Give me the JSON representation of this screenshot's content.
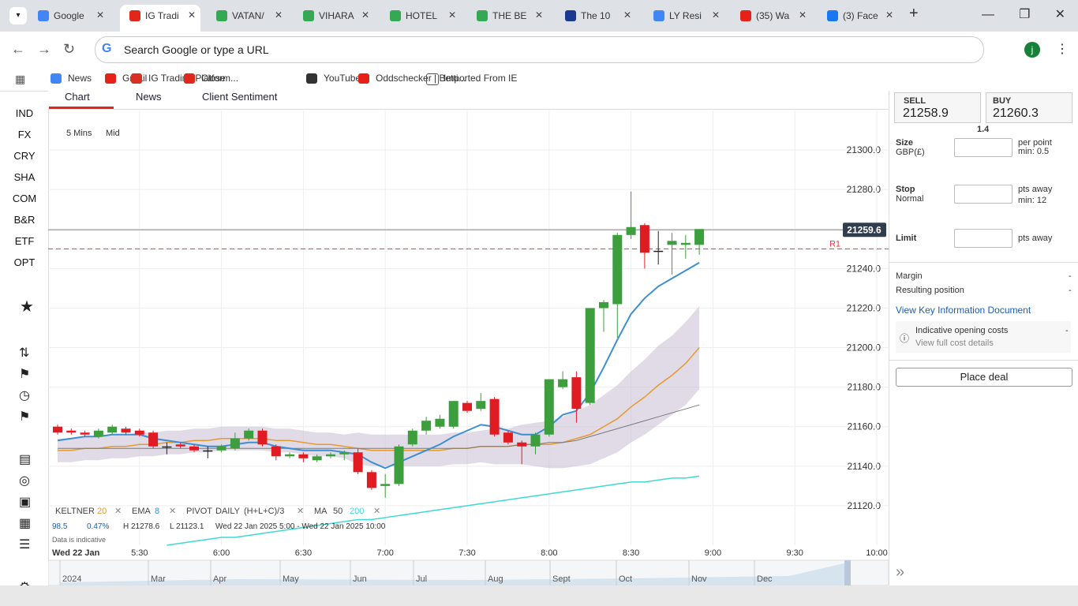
{
  "browser": {
    "tabs": [
      "Google",
      "IG Tradi",
      "VATAN/",
      "VIHARA",
      "HOTEL",
      "THE BE",
      "The 10",
      "LY Resi",
      "(35) Wa",
      "(3) Face"
    ],
    "address": "Search Google or type a URL",
    "bookmarks": [
      "News",
      "Gmail",
      "IG Trading Platform...",
      "Close",
      "YouTube",
      "Oddschecker | Betti...",
      "Imported From IE"
    ]
  },
  "sidebar": [
    "IND",
    "FX",
    "CRY",
    "SHA",
    "COM",
    "B&R",
    "ETF",
    "OPT"
  ],
  "chart_tabs": [
    "Chart",
    "News",
    "Client Sentiment"
  ],
  "chart_controls": [
    "5 Mins",
    "Mid"
  ],
  "chart_data": {
    "type": "candlestick",
    "categories": [
      null,
      null,
      null,
      null,
      null,
      null,
      "5:30",
      null,
      null,
      null,
      null,
      null,
      "6:00",
      null,
      null,
      null,
      null,
      null,
      "6:30",
      null,
      null,
      null,
      null,
      null,
      "7:00",
      null,
      null,
      null,
      null,
      null,
      "7:30",
      null,
      null,
      null,
      null,
      null,
      "8:00",
      null,
      null,
      null,
      null,
      null,
      "8:30",
      null,
      null,
      null,
      null,
      null,
      "9:00",
      null,
      null,
      null,
      null,
      null,
      "9:30",
      null,
      null,
      null,
      null,
      null,
      "10:00"
    ],
    "open": [
      21160,
      21158,
      21157,
      21155,
      21157,
      21159,
      21158,
      21157,
      21150,
      21151,
      21150,
      21148,
      21148,
      21149,
      21154,
      21158,
      21150,
      21145,
      21146,
      21143,
      21145,
      21146,
      21147,
      21137,
      21130,
      21131,
      21151,
      21158,
      21160,
      21160,
      21172,
      21169,
      21174,
      21157,
      21152,
      21150,
      21156,
      21180,
      21185,
      21172,
      21220,
      21222,
      21257,
      21262,
      21249,
      21252,
      21252,
      21252,
      null,
      null,
      null,
      null,
      null,
      null,
      null,
      null,
      null,
      null,
      null,
      null,
      null
    ],
    "high": [
      21161,
      21159,
      21158,
      21159,
      21161,
      21160,
      21159,
      21158,
      21152,
      21152,
      21151,
      21150,
      21151,
      21157,
      21159,
      21159,
      21151,
      21147,
      21147,
      21146,
      21147,
      21148,
      21149,
      21138,
      21136,
      21151,
      21159,
      21165,
      21166,
      21173,
      21173,
      21177,
      21175,
      21158,
      21153,
      21157,
      21184,
      21188,
      21188,
      21220,
      21224,
      21258,
      21279,
      21263,
      21259,
      21258,
      21257,
      21260,
      null,
      null,
      null,
      null,
      null,
      null,
      null,
      null,
      null,
      null,
      null,
      null,
      null
    ],
    "low": [
      21156,
      21156,
      21155,
      21154,
      21156,
      21156,
      21155,
      21149,
      21146,
      21149,
      21147,
      21144,
      21147,
      21148,
      21153,
      21150,
      21143,
      21144,
      21142,
      21142,
      21144,
      21143,
      21136,
      21128,
      21124,
      21130,
      21150,
      21156,
      21159,
      21159,
      21167,
      21168,
      21155,
      21151,
      21141,
      21146,
      21155,
      21179,
      21162,
      21171,
      21208,
      21205,
      21255,
      21240,
      21242,
      21237,
      21245,
      21247,
      null,
      null,
      null,
      null,
      null,
      null,
      null,
      null,
      null,
      null,
      null,
      null,
      null
    ],
    "close": [
      21157,
      21157,
      21156,
      21158,
      21160,
      21157,
      21156,
      21150,
      21150,
      21150,
      21148,
      21148,
      21150,
      21154,
      21158,
      21151,
      21145,
      21146,
      21144,
      21145,
      21146,
      21147,
      21137,
      21129,
      21131,
      21150,
      21158,
      21163,
      21164,
      21173,
      21168,
      21173,
      21156,
      21152,
      21150,
      21156,
      21184,
      21184,
      21169,
      21220,
      21223,
      21257,
      21261,
      21248,
      21249,
      21254,
      21253,
      21260,
      null,
      null,
      null,
      null,
      null,
      null,
      null,
      null,
      null,
      null,
      null,
      null,
      null
    ],
    "up_color": "#3c9e3c",
    "down_color": "#e11b22",
    "lines": [
      {
        "color": "#3d8fd1",
        "values": [
          21153,
          21154,
          21155,
          21155,
          21156,
          21156,
          21156,
          21154,
          21153,
          21152,
          21151,
          21150,
          21150,
          21151,
          21152,
          21152,
          21150,
          21149,
          21148,
          21148,
          21148,
          21147,
          21146,
          21142,
          21139,
          21142,
          21145,
          21148,
          21151,
          21155,
          21158,
          21161,
          21160,
          21158,
          21156,
          21156,
          21160,
          21166,
          21168,
          21177,
          21190,
          21204,
          21217,
          21225,
          21231,
          21235,
          21239,
          21243,
          null,
          null,
          null,
          null,
          null,
          null,
          null,
          null,
          null,
          null,
          null,
          null,
          null
        ]
      },
      {
        "color": "#e69a2e",
        "values": [
          21148,
          21148,
          21149,
          21149,
          21150,
          21150,
          21151,
          21151,
          21152,
          21152,
          21153,
          21153,
          21154,
          21154,
          21154,
          21154,
          21153,
          21153,
          21152,
          21151,
          21151,
          21150,
          21149,
          21148,
          21148,
          21148,
          21148,
          21148,
          21148,
          21149,
          21149,
          21150,
          21150,
          21150,
          21151,
          21151,
          21151,
          21152,
          21154,
          21156,
          21160,
          21164,
          21170,
          21175,
          21181,
          21186,
          21192,
          21200,
          null,
          null,
          null,
          null,
          null,
          null,
          null,
          null,
          null,
          null,
          null,
          null,
          null
        ]
      },
      {
        "color": "#c9bdd6",
        "values": [
          21154,
          21154,
          21155,
          21155,
          21156,
          21156,
          21157,
          21157,
          21158,
          21158,
          21159,
          21159,
          21160,
          21160,
          21160,
          21160,
          21159,
          21159,
          21158,
          21157,
          21157,
          21156,
          21157,
          21156,
          21156,
          21156,
          21156,
          21156,
          21156,
          21157,
          21157,
          21158,
          21159,
          21159,
          21161,
          21162,
          21163,
          21165,
          21168,
          21171,
          21176,
          21181,
          21188,
          21194,
          21201,
          21206,
          21213,
          21221,
          null,
          null,
          null,
          null,
          null,
          null,
          null,
          null,
          null,
          null,
          null,
          null,
          null
        ]
      },
      {
        "color": "#c9bdd6",
        "values": [
          21142,
          21142,
          21143,
          21143,
          21144,
          21144,
          21145,
          21145,
          21146,
          21146,
          21147,
          21147,
          21148,
          21148,
          21148,
          21148,
          21147,
          21147,
          21146,
          21145,
          21145,
          21144,
          21141,
          21140,
          21140,
          21140,
          21140,
          21140,
          21140,
          21141,
          21141,
          21142,
          21141,
          21141,
          21141,
          21140,
          21139,
          21139,
          21140,
          21141,
          21144,
          21147,
          21152,
          21156,
          21161,
          21166,
          21171,
          21179,
          null,
          null,
          null,
          null,
          null,
          null,
          null,
          null,
          null,
          null,
          null,
          null,
          null
        ]
      },
      {
        "color": "#7a7a7a",
        "values": [
          21149,
          21149,
          21149,
          21149,
          21149,
          21149,
          21149,
          21149,
          21149,
          21149,
          21149,
          21149,
          21149,
          21149,
          21149,
          21149,
          21149,
          21149,
          21149,
          21149,
          21149,
          21149,
          21149,
          21149,
          21149,
          21149,
          21149,
          21149,
          21149,
          21149,
          21149,
          21150,
          21150,
          21150,
          21151,
          21151,
          21152,
          21152,
          21153,
          21155,
          21157,
          21159,
          21161,
          21163,
          21165,
          21167,
          21169,
          21171,
          null,
          null,
          null,
          null,
          null,
          null,
          null,
          null,
          null,
          null,
          null,
          null,
          null
        ]
      },
      {
        "color": "#3fd9d4",
        "values": [
          null,
          null,
          null,
          null,
          null,
          null,
          null,
          null,
          21100,
          21101,
          21102,
          21103,
          21104,
          21104,
          21105,
          21106,
          21107,
          21108,
          21109,
          21110,
          21111,
          21112,
          21113,
          21113,
          21114,
          21115,
          21116,
          21117,
          21118,
          21119,
          21120,
          21121,
          21122,
          21123,
          21124,
          21125,
          21126,
          21127,
          21128,
          21129,
          21130,
          21131,
          21132,
          21132,
          21133,
          21134,
          21134,
          21135,
          null,
          null,
          null,
          null,
          null,
          null,
          null,
          null,
          null,
          null,
          null,
          null,
          null
        ]
      }
    ],
    "ylim": [
      21100,
      21320
    ],
    "yticks": [
      {
        "value": 21120,
        "label": "21120.0"
      },
      {
        "value": 21140,
        "label": "21140.0"
      },
      {
        "value": 21160,
        "label": "21160.0"
      },
      {
        "value": 21180,
        "label": "21180.0"
      },
      {
        "value": 21200,
        "label": "21200.0"
      },
      {
        "value": 21220,
        "label": "21220.0"
      },
      {
        "value": 21240,
        "label": "21240.0"
      },
      {
        "value": 21260,
        "label": "21260.0"
      },
      {
        "value": 21280,
        "label": "21280.0"
      },
      {
        "value": 21300,
        "label": "21300.0"
      }
    ],
    "price_line": {
      "value": 21259.6,
      "label": "21259.6"
    },
    "pivot": {
      "value": 21250,
      "label": "R1"
    },
    "grid": true
  },
  "legend": [
    "KELTNER",
    "20",
    "EMA",
    "8",
    "PIVOT",
    "DAILY",
    "(H+L+C)/3",
    "MA",
    "50",
    "200"
  ],
  "info": [
    "98.5",
    "0.47%",
    "H 21278.6",
    "L 21123.1",
    "Wed 22 Jan 2025 5:00 - Wed 22 Jan 2025 10:00",
    "Data is indicative",
    "Wed 22 Jan"
  ],
  "timeline": [
    "2024",
    "Mar",
    "Apr",
    "May",
    "Jun",
    "Jul",
    "Aug",
    "Sept",
    "Oct",
    "Nov",
    "Dec"
  ],
  "deal": {
    "sell_label": "SELL",
    "sell": "21258.9",
    "buy_label": "BUY",
    "buy": "21260.3",
    "spread": "1.4",
    "size": "Size",
    "currency": "GBP(£)",
    "per_point": "per point",
    "size_min": "min: 0.5",
    "stop": "Stop",
    "stop_type": "Normal",
    "stop_units": "pts away",
    "stop_min": "min: 12",
    "limit": "Limit",
    "limit_units": "pts away",
    "margin": "Margin",
    "margin_value": "-",
    "resulting": "Resulting position",
    "resulting_value": "-",
    "kid": "View Key Information Document",
    "costs": "Indicative opening costs",
    "costs_value": "-",
    "costs_link": "View full cost details",
    "place": "Place deal"
  }
}
